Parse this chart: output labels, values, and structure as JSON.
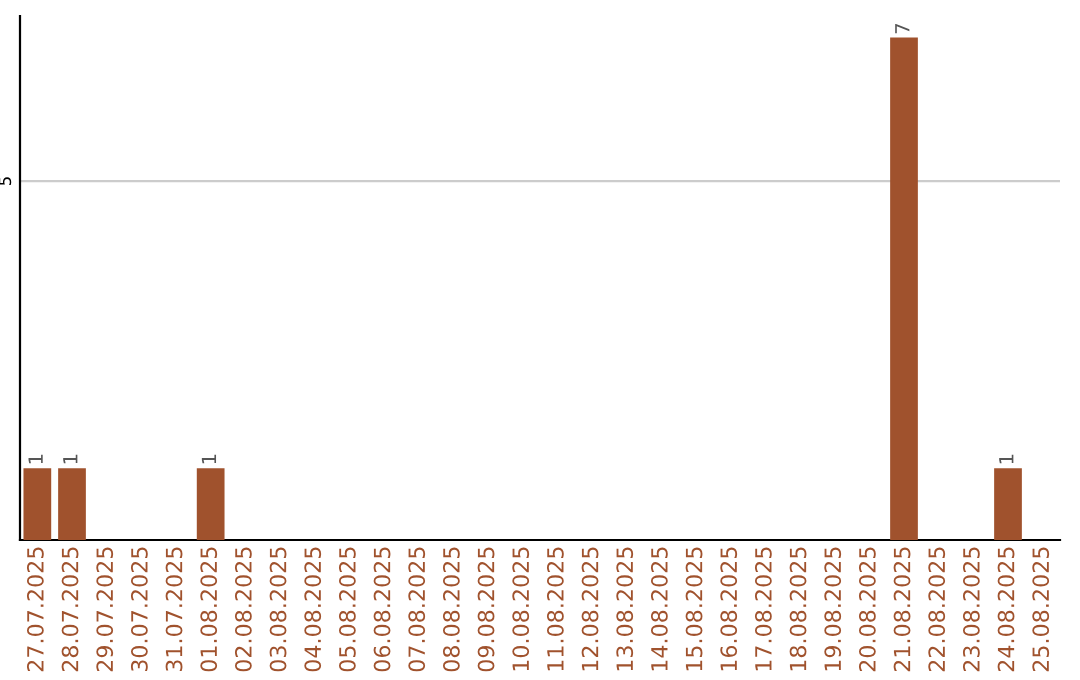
{
  "chart_data": {
    "type": "bar",
    "categories": [
      "27.07.2025",
      "28.07.2025",
      "29.07.2025",
      "30.07.2025",
      "31.07.2025",
      "01.08.2025",
      "02.08.2025",
      "03.08.2025",
      "04.08.2025",
      "05.08.2025",
      "06.08.2025",
      "07.08.2025",
      "08.08.2025",
      "09.08.2025",
      "10.08.2025",
      "11.08.2025",
      "12.08.2025",
      "13.08.2025",
      "14.08.2025",
      "15.08.2025",
      "16.08.2025",
      "17.08.2025",
      "18.08.2025",
      "19.08.2025",
      "20.08.2025",
      "21.08.2025",
      "22.08.2025",
      "23.08.2025",
      "24.08.2025",
      "25.08.2025"
    ],
    "values": [
      1,
      1,
      0,
      0,
      0,
      1,
      0,
      0,
      0,
      0,
      0,
      0,
      0,
      0,
      0,
      0,
      0,
      0,
      0,
      0,
      0,
      0,
      0,
      0,
      0,
      7,
      0,
      0,
      1,
      0
    ],
    "value_labels": [
      "1",
      "1",
      null,
      null,
      null,
      "1",
      null,
      null,
      null,
      null,
      null,
      null,
      null,
      null,
      null,
      null,
      null,
      null,
      null,
      null,
      null,
      null,
      null,
      null,
      null,
      "7",
      null,
      null,
      "1",
      null
    ],
    "color": "#a0522d",
    "ylim": [
      0,
      7.3
    ],
    "yticks": [
      5
    ],
    "grid": "y",
    "legend": false
  }
}
